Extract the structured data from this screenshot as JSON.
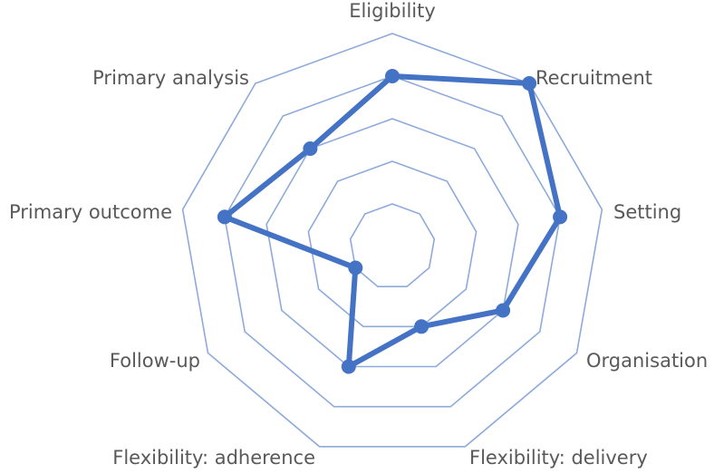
{
  "chart_data": {
    "type": "radar",
    "axes": [
      "Eligibility",
      "Recruitment",
      "Setting",
      "Organisation",
      "Flexibility: delivery",
      "Flexibility: adherence",
      "Follow-up",
      "Primary outcome",
      "Primary analysis"
    ],
    "series": [
      {
        "values": [
          4,
          5,
          4,
          3,
          2,
          3,
          1,
          4,
          3
        ]
      }
    ],
    "scale": [
      0,
      5
    ],
    "rings": [
      1,
      2,
      3,
      4,
      5
    ],
    "colors": {
      "grid": "#8EAADB",
      "series": "#4472C4",
      "label": "#595959"
    }
  }
}
